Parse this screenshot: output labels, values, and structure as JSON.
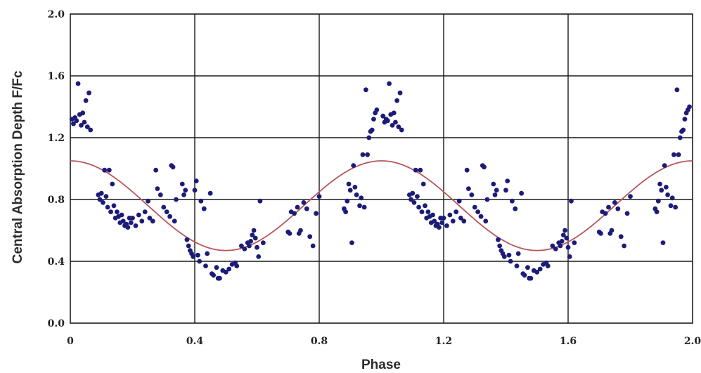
{
  "chart_data": {
    "type": "scatter",
    "xlabel": "Phase",
    "ylabel": "Central Absorption Depth F/Fc",
    "xlim": [
      0,
      2.0
    ],
    "ylim": [
      0,
      2.0
    ],
    "x_ticks": [
      "0",
      "0.4",
      "0.8",
      "1.2",
      "1.6",
      "2.0"
    ],
    "y_ticks": [
      "0.0",
      "0.4",
      "0.8",
      "1.2",
      "1.6",
      "2.0"
    ],
    "x_tick_values": [
      0,
      0.4,
      0.8,
      1.2,
      1.6,
      2.0
    ],
    "y_tick_values": [
      0,
      0.4,
      0.8,
      1.2,
      1.6,
      2.0
    ],
    "grid": true,
    "colors": {
      "points": "#1c1c78",
      "fit": "#b8555c",
      "grid": "#1a1a1a"
    },
    "fit_curve": {
      "function": "sinusoid",
      "mean": 0.76,
      "amplitude": 0.29,
      "period": 1.0,
      "peak_phase": 0.0
    },
    "series": [
      {
        "points": [
          [
            0.005,
            1.32
          ],
          [
            0.01,
            1.29
          ],
          [
            0.015,
            1.33
          ],
          [
            0.02,
            1.31
          ],
          [
            0.025,
            1.55
          ],
          [
            0.03,
            1.35
          ],
          [
            0.035,
            1.28
          ],
          [
            0.04,
            1.36
          ],
          [
            0.045,
            1.3
          ],
          [
            0.05,
            1.44
          ],
          [
            0.055,
            1.27
          ],
          [
            0.06,
            1.49
          ],
          [
            0.065,
            1.25
          ],
          [
            0.09,
            0.83
          ],
          [
            0.095,
            0.8
          ],
          [
            0.1,
            0.84
          ],
          [
            0.105,
            0.78
          ],
          [
            0.11,
            0.99
          ],
          [
            0.115,
            0.82
          ],
          [
            0.12,
            0.75
          ],
          [
            0.125,
            0.99
          ],
          [
            0.13,
            0.72
          ],
          [
            0.135,
            0.9
          ],
          [
            0.14,
            0.76
          ],
          [
            0.145,
            0.68
          ],
          [
            0.15,
            0.72
          ],
          [
            0.155,
            0.69
          ],
          [
            0.16,
            0.65
          ],
          [
            0.165,
            0.7
          ],
          [
            0.17,
            0.66
          ],
          [
            0.175,
            0.63
          ],
          [
            0.18,
            0.64
          ],
          [
            0.185,
            0.62
          ],
          [
            0.19,
            0.68
          ],
          [
            0.195,
            0.65
          ],
          [
            0.2,
            0.68
          ],
          [
            0.21,
            0.63
          ],
          [
            0.22,
            0.7
          ],
          [
            0.23,
            0.66
          ],
          [
            0.24,
            0.72
          ],
          [
            0.25,
            0.79
          ],
          [
            0.255,
            0.68
          ],
          [
            0.265,
            0.66
          ],
          [
            0.275,
            0.99
          ],
          [
            0.28,
            0.87
          ],
          [
            0.29,
            0.83
          ],
          [
            0.3,
            0.75
          ],
          [
            0.31,
            0.72
          ],
          [
            0.32,
            0.69
          ],
          [
            0.325,
            1.02
          ],
          [
            0.33,
            1.01
          ],
          [
            0.335,
            0.66
          ],
          [
            0.34,
            0.8
          ],
          [
            0.36,
            0.9
          ],
          [
            0.365,
            0.83
          ],
          [
            0.37,
            0.86
          ],
          [
            0.375,
            0.54
          ],
          [
            0.38,
            0.5
          ],
          [
            0.385,
            0.47
          ],
          [
            0.39,
            0.45
          ],
          [
            0.395,
            0.43
          ],
          [
            0.4,
            0.86
          ],
          [
            0.405,
            0.92
          ],
          [
            0.41,
            0.44
          ],
          [
            0.415,
            0.4
          ],
          [
            0.42,
            0.79
          ],
          [
            0.43,
            0.74
          ],
          [
            0.435,
            0.37
          ],
          [
            0.44,
            0.45
          ],
          [
            0.45,
            0.84
          ],
          [
            0.455,
            0.32
          ],
          [
            0.46,
            0.31
          ],
          [
            0.47,
            0.36
          ],
          [
            0.475,
            0.29
          ],
          [
            0.48,
            0.29
          ],
          [
            0.49,
            0.34
          ],
          [
            0.5,
            0.33
          ],
          [
            0.51,
            0.35
          ],
          [
            0.52,
            0.38
          ],
          [
            0.53,
            0.39
          ],
          [
            0.535,
            0.37
          ],
          [
            0.55,
            0.5
          ],
          [
            0.56,
            0.48
          ],
          [
            0.57,
            0.52
          ],
          [
            0.575,
            0.5
          ],
          [
            0.58,
            0.53
          ],
          [
            0.585,
            0.57
          ],
          [
            0.59,
            0.6
          ],
          [
            0.595,
            0.55
          ],
          [
            0.6,
            0.49
          ],
          [
            0.605,
            0.43
          ],
          [
            0.61,
            0.79
          ],
          [
            0.62,
            0.52
          ],
          [
            0.7,
            0.59
          ],
          [
            0.705,
            0.58
          ],
          [
            0.71,
            0.72
          ],
          [
            0.72,
            0.71
          ],
          [
            0.73,
            0.75
          ],
          [
            0.735,
            0.58
          ],
          [
            0.74,
            0.6
          ],
          [
            0.75,
            0.78
          ],
          [
            0.76,
            0.74
          ],
          [
            0.77,
            0.56
          ],
          [
            0.78,
            0.5
          ],
          [
            0.79,
            0.71
          ],
          [
            0.8,
            0.82
          ],
          [
            0.88,
            0.74
          ],
          [
            0.885,
            0.72
          ],
          [
            0.89,
            0.79
          ],
          [
            0.895,
            0.9
          ],
          [
            0.9,
            0.86
          ],
          [
            0.905,
            0.52
          ],
          [
            0.91,
            1.02
          ],
          [
            0.915,
            0.88
          ],
          [
            0.92,
            0.83
          ],
          [
            0.93,
            0.76
          ],
          [
            0.935,
            0.81
          ],
          [
            0.94,
            1.09
          ],
          [
            0.945,
            0.75
          ],
          [
            0.95,
            1.51
          ],
          [
            0.955,
            1.09
          ],
          [
            0.96,
            1.2
          ],
          [
            0.965,
            1.24
          ],
          [
            0.97,
            1.25
          ],
          [
            0.975,
            1.32
          ],
          [
            0.98,
            1.36
          ],
          [
            0.985,
            1.38
          ],
          [
            1.005,
            1.34
          ],
          [
            1.01,
            1.3
          ],
          [
            1.015,
            1.32
          ],
          [
            1.02,
            1.31
          ],
          [
            1.025,
            1.55
          ],
          [
            1.03,
            1.35
          ],
          [
            1.035,
            1.28
          ],
          [
            1.04,
            1.36
          ],
          [
            1.045,
            1.3
          ],
          [
            1.05,
            1.44
          ],
          [
            1.055,
            1.27
          ],
          [
            1.06,
            1.49
          ],
          [
            1.065,
            1.25
          ],
          [
            1.09,
            0.83
          ],
          [
            1.095,
            0.8
          ],
          [
            1.1,
            0.84
          ],
          [
            1.105,
            0.78
          ],
          [
            1.11,
            0.99
          ],
          [
            1.115,
            0.82
          ],
          [
            1.12,
            0.75
          ],
          [
            1.125,
            0.99
          ],
          [
            1.13,
            0.72
          ],
          [
            1.135,
            0.9
          ],
          [
            1.14,
            0.76
          ],
          [
            1.145,
            0.68
          ],
          [
            1.15,
            0.72
          ],
          [
            1.155,
            0.69
          ],
          [
            1.16,
            0.65
          ],
          [
            1.165,
            0.7
          ],
          [
            1.17,
            0.66
          ],
          [
            1.175,
            0.63
          ],
          [
            1.18,
            0.64
          ],
          [
            1.185,
            0.62
          ],
          [
            1.19,
            0.68
          ],
          [
            1.195,
            0.65
          ],
          [
            1.2,
            0.68
          ],
          [
            1.21,
            0.63
          ],
          [
            1.22,
            0.7
          ],
          [
            1.23,
            0.66
          ],
          [
            1.24,
            0.72
          ],
          [
            1.25,
            0.79
          ],
          [
            1.255,
            0.68
          ],
          [
            1.265,
            0.66
          ],
          [
            1.275,
            0.99
          ],
          [
            1.28,
            0.87
          ],
          [
            1.29,
            0.83
          ],
          [
            1.3,
            0.75
          ],
          [
            1.31,
            0.72
          ],
          [
            1.32,
            0.69
          ],
          [
            1.325,
            1.02
          ],
          [
            1.33,
            1.01
          ],
          [
            1.335,
            0.66
          ],
          [
            1.34,
            0.8
          ],
          [
            1.36,
            0.9
          ],
          [
            1.365,
            0.83
          ],
          [
            1.37,
            0.86
          ],
          [
            1.375,
            0.54
          ],
          [
            1.38,
            0.5
          ],
          [
            1.385,
            0.47
          ],
          [
            1.39,
            0.45
          ],
          [
            1.395,
            0.43
          ],
          [
            1.4,
            0.86
          ],
          [
            1.405,
            0.92
          ],
          [
            1.41,
            0.44
          ],
          [
            1.415,
            0.4
          ],
          [
            1.42,
            0.79
          ],
          [
            1.43,
            0.74
          ],
          [
            1.435,
            0.37
          ],
          [
            1.44,
            0.45
          ],
          [
            1.45,
            0.84
          ],
          [
            1.455,
            0.32
          ],
          [
            1.46,
            0.31
          ],
          [
            1.47,
            0.36
          ],
          [
            1.475,
            0.29
          ],
          [
            1.48,
            0.29
          ],
          [
            1.49,
            0.34
          ],
          [
            1.5,
            0.33
          ],
          [
            1.51,
            0.35
          ],
          [
            1.52,
            0.38
          ],
          [
            1.53,
            0.39
          ],
          [
            1.535,
            0.37
          ],
          [
            1.55,
            0.5
          ],
          [
            1.56,
            0.48
          ],
          [
            1.57,
            0.52
          ],
          [
            1.575,
            0.5
          ],
          [
            1.58,
            0.53
          ],
          [
            1.585,
            0.57
          ],
          [
            1.59,
            0.6
          ],
          [
            1.595,
            0.55
          ],
          [
            1.6,
            0.49
          ],
          [
            1.605,
            0.43
          ],
          [
            1.61,
            0.79
          ],
          [
            1.62,
            0.52
          ],
          [
            1.7,
            0.59
          ],
          [
            1.705,
            0.58
          ],
          [
            1.71,
            0.72
          ],
          [
            1.72,
            0.71
          ],
          [
            1.73,
            0.75
          ],
          [
            1.735,
            0.58
          ],
          [
            1.74,
            0.6
          ],
          [
            1.75,
            0.78
          ],
          [
            1.76,
            0.74
          ],
          [
            1.77,
            0.56
          ],
          [
            1.78,
            0.5
          ],
          [
            1.79,
            0.71
          ],
          [
            1.8,
            0.82
          ],
          [
            1.88,
            0.74
          ],
          [
            1.885,
            0.72
          ],
          [
            1.89,
            0.79
          ],
          [
            1.895,
            0.9
          ],
          [
            1.9,
            0.86
          ],
          [
            1.905,
            0.52
          ],
          [
            1.91,
            1.02
          ],
          [
            1.915,
            0.88
          ],
          [
            1.92,
            0.83
          ],
          [
            1.93,
            0.76
          ],
          [
            1.935,
            0.81
          ],
          [
            1.94,
            1.09
          ],
          [
            1.945,
            0.75
          ],
          [
            1.95,
            1.51
          ],
          [
            1.955,
            1.09
          ],
          [
            1.96,
            1.2
          ],
          [
            1.965,
            1.24
          ],
          [
            1.97,
            1.25
          ],
          [
            1.975,
            1.32
          ],
          [
            1.98,
            1.36
          ],
          [
            1.985,
            1.38
          ],
          [
            1.99,
            1.4
          ]
        ]
      }
    ]
  }
}
